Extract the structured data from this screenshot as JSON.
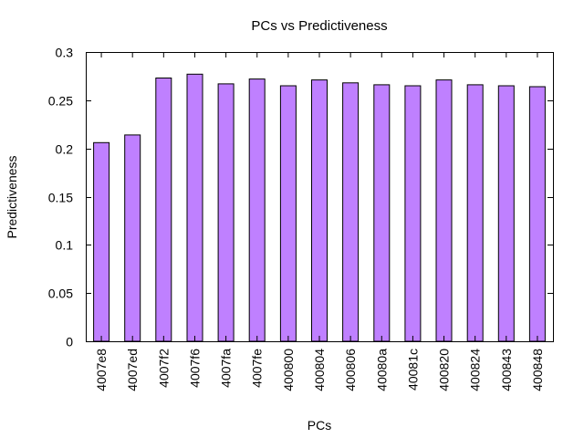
{
  "chart_data": {
    "type": "bar",
    "title": "PCs vs Predictiveness",
    "xlabel": "PCs",
    "ylabel": "Predictiveness",
    "ylim": [
      0,
      0.3
    ],
    "yticks": [
      "0",
      "0.05",
      "0.1",
      "0.15",
      "0.2",
      "0.25",
      "0.3"
    ],
    "categories": [
      "4007e8",
      "4007ed",
      "4007f2",
      "4007f6",
      "4007fa",
      "4007fe",
      "400800",
      "400804",
      "400806",
      "40080a",
      "40081c",
      "400820",
      "400824",
      "400843",
      "400848"
    ],
    "values": [
      0.206,
      0.214,
      0.273,
      0.277,
      0.267,
      0.272,
      0.265,
      0.271,
      0.268,
      0.266,
      0.265,
      0.271,
      0.266,
      0.265,
      0.264
    ],
    "bar_color": "#bf80ff",
    "legend": "none",
    "grid": false
  }
}
